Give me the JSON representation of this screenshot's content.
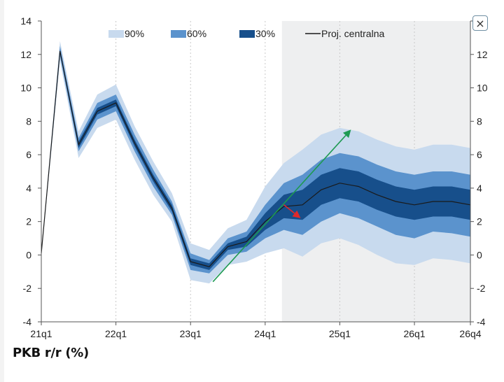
{
  "chart_data": {
    "type": "area",
    "title": "",
    "caption": "PKB r/r (%)",
    "ylim": [
      -4,
      14
    ],
    "yticks": [
      -4,
      -2,
      0,
      2,
      4,
      6,
      8,
      10,
      12,
      14
    ],
    "x_range": [
      0,
      23
    ],
    "x_ticks": [
      {
        "label": "21q1",
        "x": 0
      },
      {
        "label": "22q1",
        "x": 4
      },
      {
        "label": "23q1",
        "x": 8
      },
      {
        "label": "24q1",
        "x": 12
      },
      {
        "label": "25q1",
        "x": 16
      },
      {
        "label": "26q1",
        "x": 20
      },
      {
        "label": "26q4",
        "x": 23
      }
    ],
    "projection_start_x": 12.9,
    "legend": [
      {
        "key": "b90",
        "label": "90%",
        "color": "#c8daee"
      },
      {
        "key": "b60",
        "label": "60%",
        "color": "#5b93cd"
      },
      {
        "key": "b30",
        "label": "30%",
        "color": "#174f8b"
      },
      {
        "key": "central",
        "label": "Proj. centralna",
        "color": "#1a1a1a"
      }
    ],
    "x": [
      0,
      1,
      2,
      3,
      4,
      5,
      6,
      7,
      8,
      9,
      10,
      11,
      12,
      13,
      14,
      15,
      16,
      17,
      18,
      19,
      20,
      21,
      22,
      23
    ],
    "series": [
      {
        "name": "Proj. centralna",
        "values": [
          0.1,
          12.2,
          6.6,
          8.6,
          9.1,
          6.7,
          4.6,
          2.8,
          -0.4,
          -0.7,
          0.5,
          0.8,
          2.0,
          2.9,
          3.0,
          3.9,
          4.3,
          4.1,
          3.6,
          3.2,
          3.0,
          3.2,
          3.2,
          3.0
        ]
      },
      {
        "name": "30% lower",
        "values": [
          0.1,
          12.1,
          6.4,
          8.4,
          8.9,
          6.5,
          4.4,
          2.6,
          -0.6,
          -0.9,
          0.3,
          0.5,
          1.5,
          2.2,
          2.1,
          3.0,
          3.4,
          3.2,
          2.7,
          2.3,
          2.1,
          2.3,
          2.3,
          2.1
        ]
      },
      {
        "name": "30% upper",
        "values": [
          0.1,
          12.3,
          6.8,
          8.8,
          9.3,
          6.9,
          4.8,
          3.0,
          -0.2,
          -0.5,
          0.7,
          1.1,
          2.5,
          3.6,
          3.9,
          4.8,
          5.2,
          5.0,
          4.5,
          4.1,
          3.9,
          4.1,
          4.1,
          3.9
        ]
      },
      {
        "name": "60% lower",
        "values": [
          0.0,
          11.9,
          6.2,
          8.1,
          8.6,
          6.2,
          4.1,
          2.4,
          -0.9,
          -1.1,
          0.0,
          0.2,
          1.0,
          1.5,
          1.2,
          2.0,
          2.5,
          2.2,
          1.7,
          1.2,
          1.0,
          1.4,
          1.3,
          1.1
        ]
      },
      {
        "name": "60% upper",
        "values": [
          0.1,
          12.5,
          7.0,
          9.1,
          9.6,
          7.2,
          5.1,
          3.2,
          0.1,
          -0.3,
          1.0,
          1.4,
          3.0,
          4.3,
          4.8,
          5.7,
          6.1,
          5.9,
          5.4,
          5.0,
          4.8,
          5.0,
          5.0,
          4.8
        ]
      },
      {
        "name": "90% lower",
        "values": [
          0.0,
          11.6,
          5.8,
          7.6,
          8.1,
          5.7,
          3.6,
          2.0,
          -1.5,
          -1.7,
          -0.6,
          -0.4,
          0.1,
          0.4,
          -0.1,
          0.7,
          1.0,
          0.6,
          0.0,
          -0.5,
          -0.6,
          -0.2,
          -0.3,
          -0.5
        ]
      },
      {
        "name": "90% upper",
        "values": [
          0.2,
          12.8,
          7.4,
          9.6,
          10.2,
          7.7,
          5.6,
          3.7,
          0.7,
          0.3,
          1.6,
          2.1,
          4.1,
          5.5,
          6.3,
          7.2,
          7.6,
          7.4,
          6.9,
          6.5,
          6.3,
          6.6,
          6.6,
          6.4
        ]
      }
    ],
    "annotations": [
      {
        "type": "arrow",
        "color": "#1e9a52",
        "from": [
          9.2,
          -1.6
        ],
        "to": [
          16.6,
          7.5
        ]
      },
      {
        "type": "arrow",
        "color": "#e0292b",
        "from": [
          13.0,
          3.0
        ],
        "to": [
          13.9,
          2.2
        ]
      }
    ]
  },
  "close_button": {
    "label": "×"
  }
}
